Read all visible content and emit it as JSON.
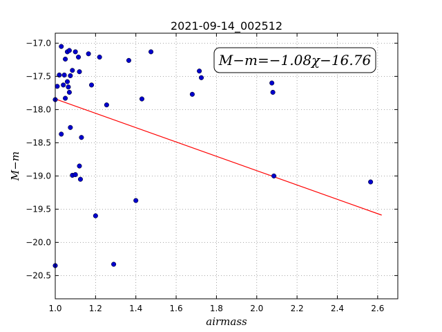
{
  "chart_data": {
    "type": "scatter",
    "title": "2021-09-14_002512",
    "xlabel": "airmass",
    "ylabel": "M−m",
    "xlim": [
      1.0,
      2.7
    ],
    "ylim": [
      -20.85,
      -16.85
    ],
    "xticks": [
      1.0,
      1.2,
      1.4,
      1.6,
      1.8,
      2.0,
      2.2,
      2.4,
      2.6
    ],
    "xtick_labels": [
      "1.0",
      "1.2",
      "1.4",
      "1.6",
      "1.8",
      "2.0",
      "2.2",
      "2.4",
      "2.6"
    ],
    "yticks": [
      -17.0,
      -17.5,
      -18.0,
      -18.5,
      -19.0,
      -19.5,
      -20.0,
      -20.5
    ],
    "ytick_labels": [
      "−17.0",
      "−17.5",
      "−18.0",
      "−18.5",
      "−19.0",
      "−19.5",
      "−20.0",
      "−20.5"
    ],
    "grid": true,
    "annotation": "M−m=−1.08χ−16.76",
    "points": [
      {
        "x": 1.0,
        "y": -17.85
      },
      {
        "x": 1.0,
        "y": -20.35
      },
      {
        "x": 1.01,
        "y": -17.65
      },
      {
        "x": 1.02,
        "y": -17.48
      },
      {
        "x": 1.03,
        "y": -17.05
      },
      {
        "x": 1.03,
        "y": -18.37
      },
      {
        "x": 1.04,
        "y": -17.63
      },
      {
        "x": 1.045,
        "y": -17.48
      },
      {
        "x": 1.05,
        "y": -17.24
      },
      {
        "x": 1.05,
        "y": -17.83
      },
      {
        "x": 1.06,
        "y": -17.58
      },
      {
        "x": 1.06,
        "y": -17.13
      },
      {
        "x": 1.065,
        "y": -17.66
      },
      {
        "x": 1.07,
        "y": -17.74
      },
      {
        "x": 1.07,
        "y": -17.11
      },
      {
        "x": 1.075,
        "y": -17.49
      },
      {
        "x": 1.075,
        "y": -18.27
      },
      {
        "x": 1.085,
        "y": -17.41
      },
      {
        "x": 1.085,
        "y": -18.99
      },
      {
        "x": 1.1,
        "y": -17.13
      },
      {
        "x": 1.1,
        "y": -18.98
      },
      {
        "x": 1.115,
        "y": -17.21
      },
      {
        "x": 1.12,
        "y": -17.43
      },
      {
        "x": 1.12,
        "y": -18.85
      },
      {
        "x": 1.125,
        "y": -19.05
      },
      {
        "x": 1.13,
        "y": -18.42
      },
      {
        "x": 1.165,
        "y": -17.16
      },
      {
        "x": 1.18,
        "y": -17.63
      },
      {
        "x": 1.2,
        "y": -19.6
      },
      {
        "x": 1.22,
        "y": -17.21
      },
      {
        "x": 1.255,
        "y": -17.93
      },
      {
        "x": 1.29,
        "y": -20.33
      },
      {
        "x": 1.365,
        "y": -17.26
      },
      {
        "x": 1.4,
        "y": -19.37
      },
      {
        "x": 1.43,
        "y": -17.84
      },
      {
        "x": 1.475,
        "y": -17.13
      },
      {
        "x": 1.68,
        "y": -17.77
      },
      {
        "x": 1.715,
        "y": -17.42
      },
      {
        "x": 1.725,
        "y": -17.52
      },
      {
        "x": 2.075,
        "y": -17.6
      },
      {
        "x": 2.08,
        "y": -17.74
      },
      {
        "x": 2.085,
        "y": -19.0
      },
      {
        "x": 2.565,
        "y": -19.09
      }
    ],
    "fit": {
      "slope": -1.08,
      "intercept": -16.76,
      "x_range": [
        1.0,
        2.62
      ]
    },
    "colors": {
      "points": "#0000cc",
      "fit_line": "#ff0000",
      "grid": "#888888"
    }
  }
}
